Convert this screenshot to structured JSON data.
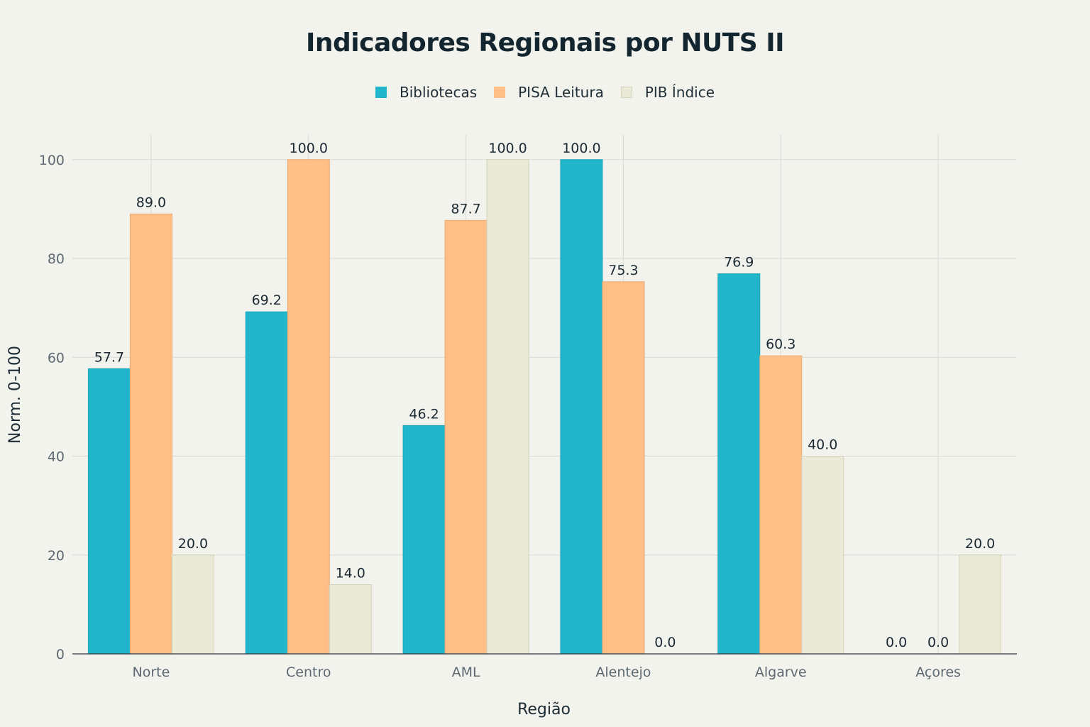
{
  "chart_data": {
    "type": "bar",
    "title": "Indicadores Regionais por NUTS II",
    "xlabel": "Região",
    "ylabel": "Norm. 0-100",
    "categories": [
      "Norte",
      "Centro",
      "AML",
      "Alentejo",
      "Algarve",
      "Açores"
    ],
    "series": [
      {
        "name": "Bibliotecas",
        "color": "#21b6cb",
        "values": [
          57.7,
          69.2,
          46.2,
          100.0,
          76.9,
          0.0
        ]
      },
      {
        "name": "PISA Leitura",
        "color": "#ffbf86",
        "values": [
          89.0,
          100.0,
          87.7,
          75.3,
          60.3,
          0.0
        ]
      },
      {
        "name": "PIB Índice",
        "color": "#ebead6",
        "values": [
          20.0,
          14.0,
          100.0,
          0.0,
          40.0,
          20.0
        ]
      }
    ],
    "ylim": [
      0,
      105
    ],
    "yticks": [
      0,
      20,
      40,
      60,
      80,
      100
    ],
    "grid": true,
    "legend_position": "top-center"
  }
}
